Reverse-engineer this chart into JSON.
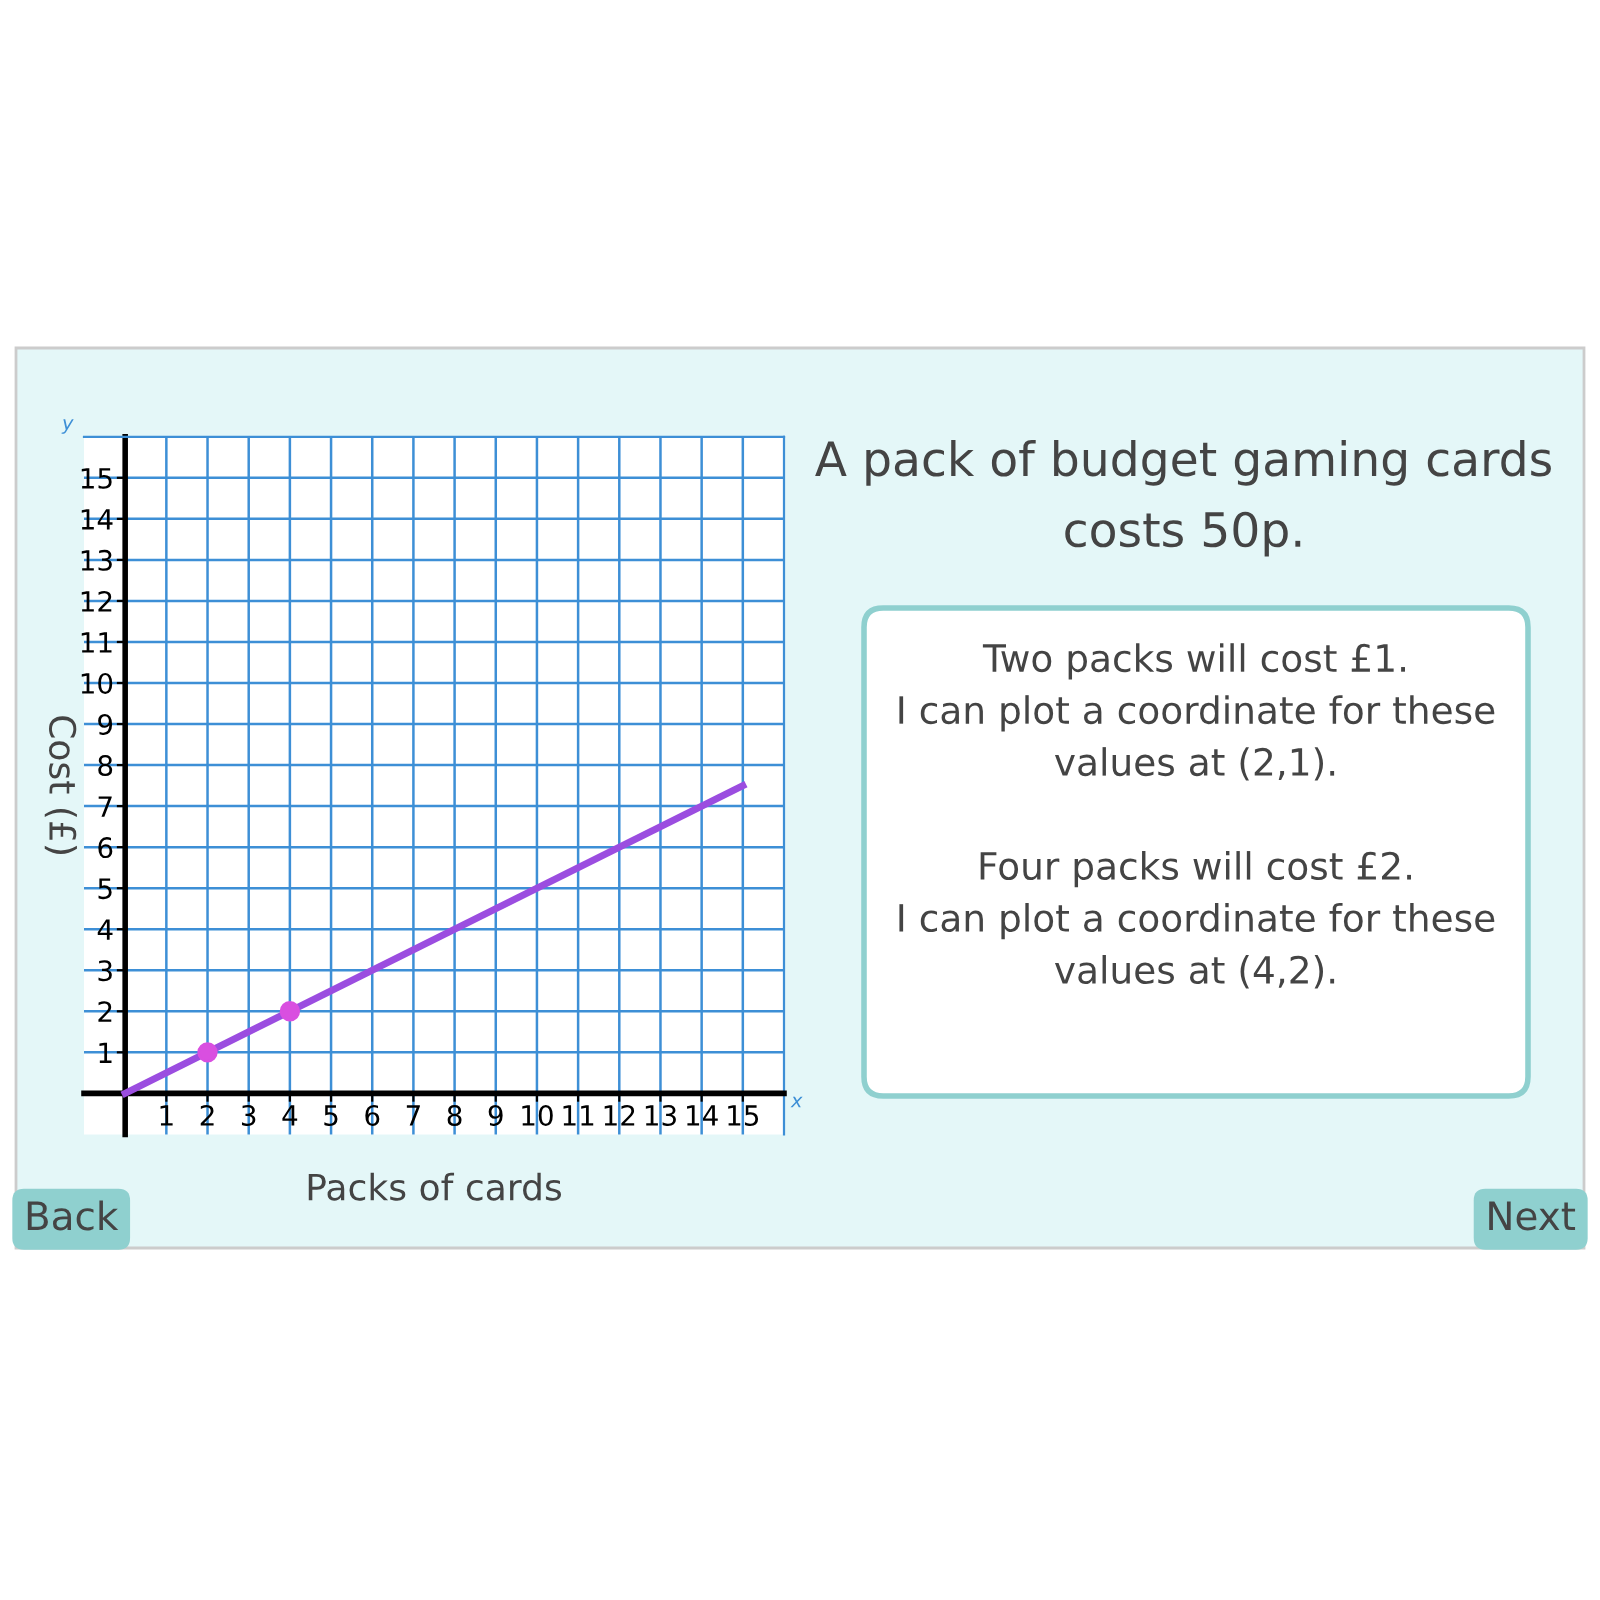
{
  "chart_data": {
    "type": "line",
    "title": "A pack of budget gaming cards costs 50p.",
    "xlabel": "Packs of cards",
    "ylabel": "Cost (£)",
    "series": [
      {
        "color": "#9b4de0",
        "x": [
          0,
          15
        ],
        "values": [
          0,
          7.5
        ]
      },
      {
        "type": "scatter",
        "color": "#d94fe0",
        "x": [
          2,
          4
        ],
        "values": [
          1,
          2
        ]
      }
    ],
    "xlim": [
      -1,
      16
    ],
    "ylim": [
      -1,
      16
    ],
    "xticks": [
      1,
      2,
      3,
      4,
      5,
      6,
      7,
      8,
      9,
      10,
      11,
      12,
      13,
      14,
      15
    ],
    "yticks": [
      1,
      2,
      3,
      4,
      5,
      6,
      7,
      8,
      9,
      10,
      11,
      12,
      13,
      14,
      15
    ],
    "grid": true,
    "line_style": "solid",
    "annotations": [
      "x",
      "y",
      "Two packs will cost £1.\nI can plot a coordinate for these\nvalues at (2,1).\n\nFour packs will cost £2.\nI can plot a coordinate for these\nvalues at (4,2).",
      "Back",
      "Next"
    ]
  }
}
